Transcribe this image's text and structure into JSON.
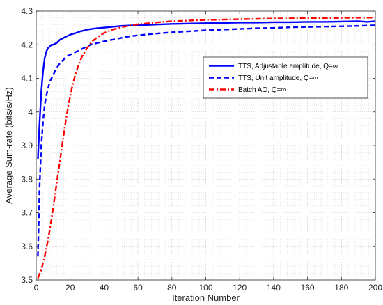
{
  "chart_data": {
    "type": "line",
    "title": "",
    "xlabel": "Iteration Number",
    "ylabel": "Average Sum-rate (bits/s/Hz)",
    "xlim": [
      0,
      200
    ],
    "ylim": [
      3.5,
      4.3
    ],
    "xticks": [
      0,
      20,
      40,
      60,
      80,
      100,
      120,
      140,
      160,
      180,
      200
    ],
    "yticks": [
      3.5,
      3.6,
      3.7,
      3.8,
      3.9,
      4.0,
      4.1,
      4.2,
      4.3
    ],
    "xtick_labels": [
      "0",
      "20",
      "40",
      "60",
      "80",
      "100",
      "120",
      "140",
      "160",
      "180",
      "200"
    ],
    "ytick_labels": [
      "3.5",
      "3.6",
      "3.7",
      "3.8",
      "3.9",
      "4",
      "4.1",
      "4.2",
      "4.3"
    ],
    "grid": "dotted major and minor",
    "legend_position": "top-right",
    "series": [
      {
        "name": "TTS, Adjustable amplitude, Q=∞",
        "color": "#0000ff",
        "style": "solid",
        "x": [
          1,
          2,
          3,
          4,
          5,
          6,
          7,
          8,
          9,
          10,
          12,
          14,
          16,
          18,
          20,
          22,
          24,
          26,
          28,
          30,
          34,
          38,
          42,
          46,
          50,
          55,
          60,
          65,
          70,
          75,
          80,
          90,
          100,
          110,
          120,
          130,
          140,
          150,
          160,
          170,
          180,
          190,
          195,
          200
        ],
        "y": [
          3.86,
          3.97,
          4.06,
          4.12,
          4.16,
          4.18,
          4.19,
          4.195,
          4.2,
          4.2,
          4.205,
          4.215,
          4.22,
          4.225,
          4.23,
          4.233,
          4.236,
          4.24,
          4.242,
          4.245,
          4.248,
          4.25,
          4.252,
          4.254,
          4.256,
          4.257,
          4.258,
          4.259,
          4.26,
          4.261,
          4.262,
          4.263,
          4.264,
          4.265,
          4.266,
          4.266,
          4.267,
          4.267,
          4.268,
          4.268,
          4.269,
          4.27,
          4.268,
          4.27
        ]
      },
      {
        "name": "TTS, Unit amplitude, Q=∞",
        "color": "#0000ff",
        "style": "dashed",
        "x": [
          1,
          2,
          3,
          4,
          5,
          6,
          7,
          8,
          10,
          12,
          14,
          16,
          18,
          20,
          24,
          28,
          32,
          36,
          40,
          45,
          50,
          55,
          60,
          70,
          80,
          90,
          100,
          110,
          120,
          130,
          140,
          150,
          160,
          170,
          180,
          190,
          200
        ],
        "y": [
          3.57,
          3.78,
          3.9,
          3.97,
          4.02,
          4.05,
          4.07,
          4.09,
          4.11,
          4.13,
          4.145,
          4.155,
          4.165,
          4.17,
          4.18,
          4.19,
          4.2,
          4.205,
          4.21,
          4.215,
          4.22,
          4.225,
          4.228,
          4.233,
          4.237,
          4.24,
          4.243,
          4.245,
          4.247,
          4.249,
          4.25,
          4.252,
          4.253,
          4.254,
          4.255,
          4.256,
          4.258
        ]
      },
      {
        "name": "Batch AO, Q=∞",
        "color": "#ff0000",
        "style": "dashdot",
        "x": [
          1,
          3,
          5,
          7,
          9,
          11,
          13,
          15,
          17,
          19,
          21,
          23,
          25,
          27,
          30,
          33,
          36,
          40,
          45,
          50,
          55,
          60,
          70,
          80,
          90,
          100,
          120,
          140,
          160,
          180,
          200
        ],
        "y": [
          3.505,
          3.53,
          3.57,
          3.62,
          3.68,
          3.75,
          3.82,
          3.89,
          3.96,
          4.02,
          4.07,
          4.11,
          4.14,
          4.165,
          4.19,
          4.21,
          4.222,
          4.235,
          4.245,
          4.252,
          4.257,
          4.261,
          4.266,
          4.27,
          4.272,
          4.274,
          4.276,
          4.278,
          4.279,
          4.28,
          4.281
        ]
      }
    ]
  }
}
